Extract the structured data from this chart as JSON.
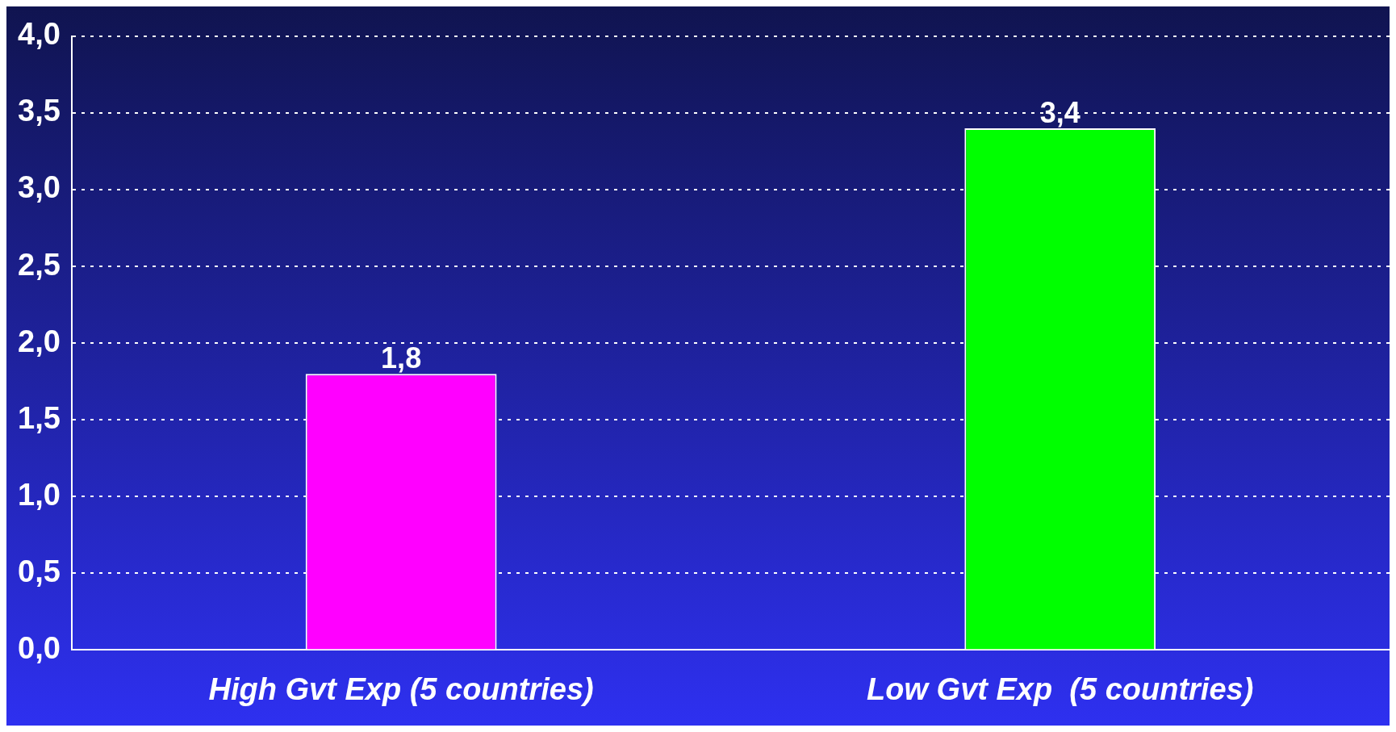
{
  "chart_data": {
    "type": "bar",
    "categories": [
      "High Gvt Exp (5 countries)",
      "Low Gvt Exp  (5 countries)"
    ],
    "values": [
      1.8,
      3.4
    ],
    "colors": [
      "#ff00ff",
      "#00ff00"
    ],
    "value_labels": [
      "1,8",
      "3,4"
    ],
    "ylim": [
      0,
      4
    ],
    "yticks": [
      {
        "value": 0,
        "label": "0,0"
      },
      {
        "value": 0.5,
        "label": "0,5"
      },
      {
        "value": 1,
        "label": "1,0"
      },
      {
        "value": 1.5,
        "label": "1,5"
      },
      {
        "value": 2,
        "label": "2,0"
      },
      {
        "value": 2.5,
        "label": "2,5"
      },
      {
        "value": 3,
        "label": "3,0"
      },
      {
        "value": 3.5,
        "label": "3,5"
      },
      {
        "value": 4,
        "label": "4,0"
      }
    ],
    "grid": "y",
    "legend": false
  }
}
